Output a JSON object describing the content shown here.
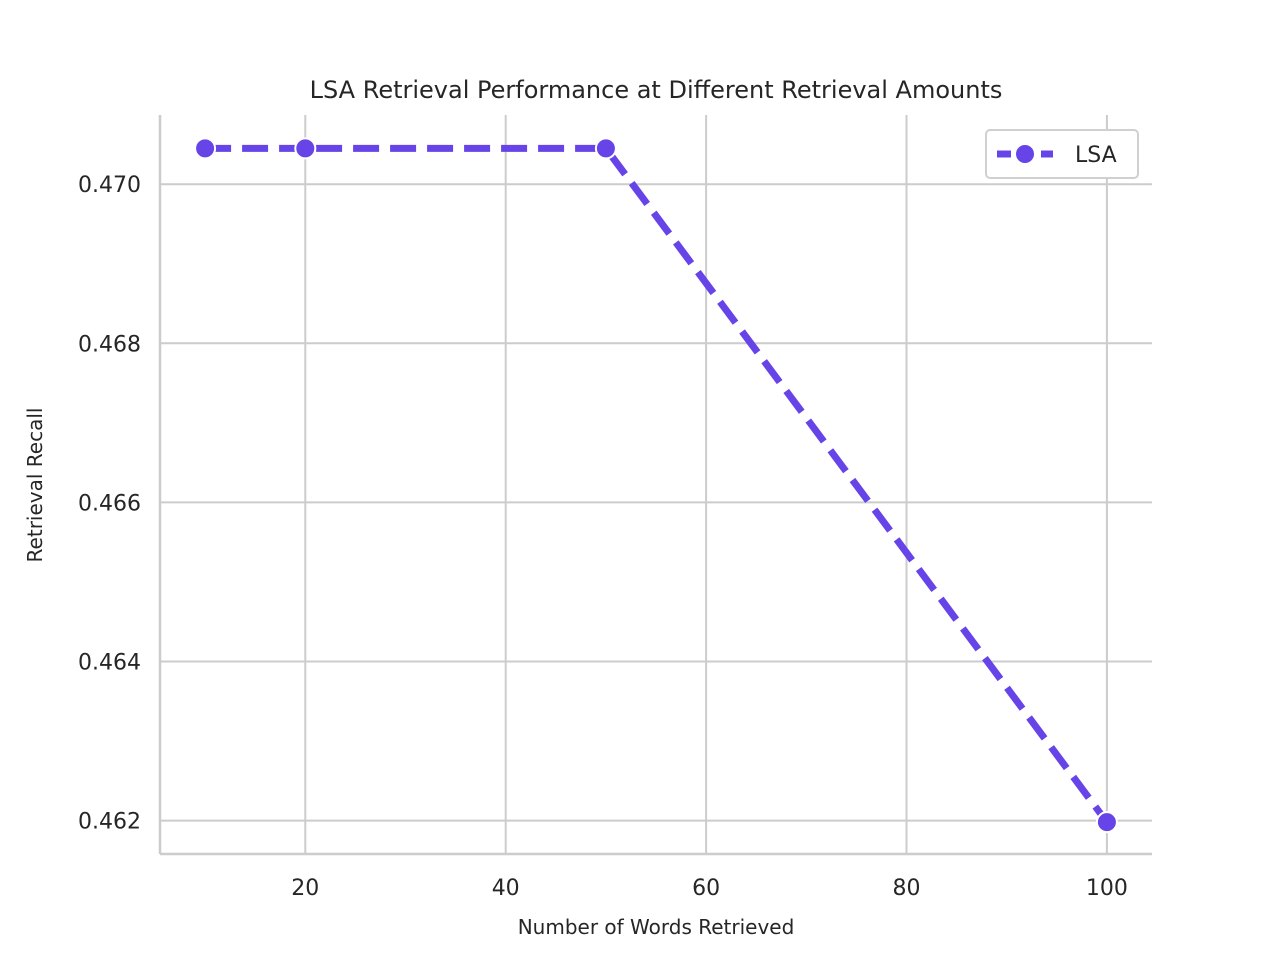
{
  "chart_data": {
    "type": "line",
    "title": "LSA Retrieval Performance at Different Retrieval Amounts",
    "xlabel": "Number of Words Retrieved",
    "ylabel": "Retrieval Recall",
    "xlim": [
      5.5,
      104.5
    ],
    "ylim": [
      0.46158,
      0.47087
    ],
    "xticks": [
      20,
      40,
      60,
      80,
      100
    ],
    "xtick_labels": [
      "20",
      "40",
      "60",
      "80",
      "100"
    ],
    "yticks": [
      0.462,
      0.464,
      0.466,
      0.468,
      0.47
    ],
    "ytick_labels": [
      "0.462",
      "0.464",
      "0.466",
      "0.468",
      "0.470"
    ],
    "grid": true,
    "legend_position": "top-right",
    "series": [
      {
        "name": "LSA",
        "color": "#6644e8",
        "line_style": "dashed",
        "marker": "circle",
        "x": [
          10,
          20,
          50,
          100
        ],
        "y": [
          0.47045,
          0.47045,
          0.47045,
          0.46198
        ]
      }
    ]
  }
}
